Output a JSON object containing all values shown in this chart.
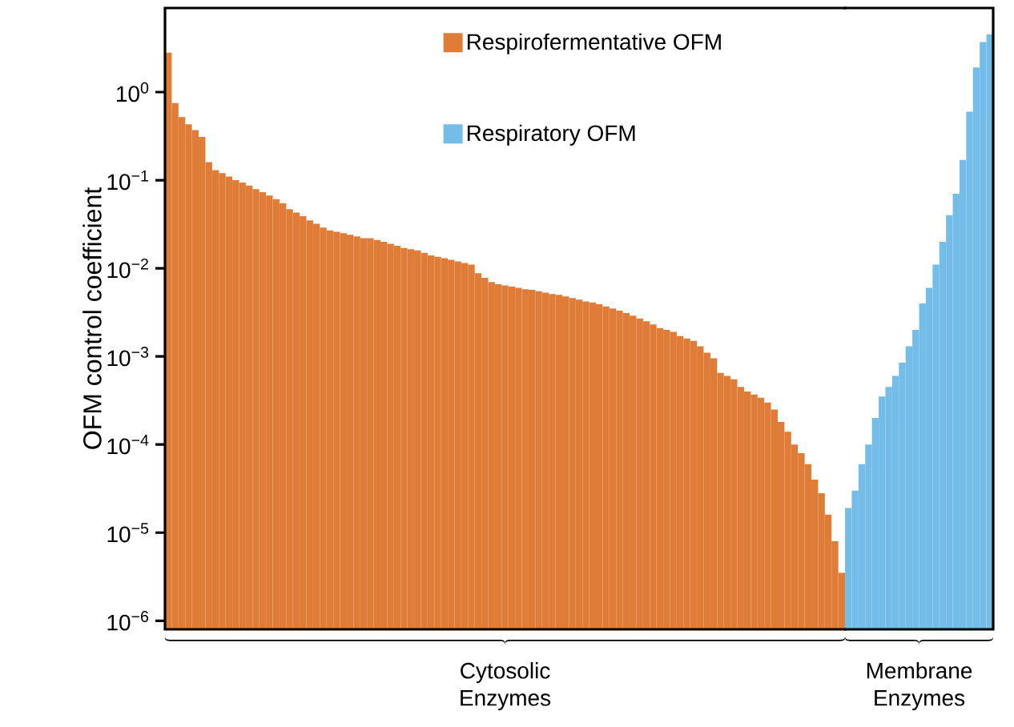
{
  "chart_data": [
    {
      "type": "bar",
      "ylabel": "OFM control coefficient",
      "log": "y",
      "legend": "top",
      "ylim": [
        8e-07,
        9
      ],
      "yticks": [
        {
          "value": 1e-06,
          "label": "10$^{−6}$"
        },
        {
          "value": 1e-05,
          "label": "10$^{−5}$"
        },
        {
          "value": 0.0001,
          "label": "10$^{−4}$"
        },
        {
          "value": 0.001,
          "label": "10$^{−3}$"
        },
        {
          "value": 0.01,
          "label": "10$^{−2}$"
        },
        {
          "value": 0.1,
          "label": "10$^{−1}$"
        },
        {
          "value": 1,
          "label": "10$^{0}$"
        }
      ],
      "annotations": [
        "Cytosolic Enzymes"
      ],
      "categories": [
        null,
        null,
        null,
        null,
        null,
        null,
        null,
        null,
        null,
        null,
        null,
        null,
        null,
        null,
        null,
        null,
        null,
        null,
        null,
        null,
        null,
        null,
        null,
        null,
        null,
        null,
        null,
        null,
        null,
        null,
        null,
        null,
        null,
        null,
        null,
        null,
        null,
        null,
        null,
        null,
        null,
        null,
        null,
        null,
        null,
        null,
        null,
        null,
        null,
        null,
        null,
        null,
        null,
        null,
        null,
        null,
        null,
        null,
        null,
        null,
        null,
        null,
        null,
        null,
        null,
        null,
        null,
        null,
        null,
        null,
        null,
        null,
        null,
        null,
        null,
        null,
        null,
        null,
        null,
        null,
        null,
        null,
        null,
        null,
        null,
        null,
        null,
        null,
        null,
        null,
        null,
        null,
        null,
        null,
        null,
        null,
        null,
        null,
        null,
        null,
        null
      ],
      "series": [
        {
          "name": "Respirofermentative OFM",
          "color": "#df7d38",
          "values": [
            2.8,
            0.75,
            0.52,
            0.43,
            0.37,
            0.31,
            0.16,
            0.13,
            0.12,
            0.11,
            0.1,
            0.094,
            0.087,
            0.079,
            0.073,
            0.067,
            0.061,
            0.055,
            0.047,
            0.043,
            0.039,
            0.035,
            0.032,
            0.029,
            0.027,
            0.026,
            0.025,
            0.024,
            0.023,
            0.022,
            0.022,
            0.021,
            0.02,
            0.019,
            0.018,
            0.017,
            0.0165,
            0.016,
            0.015,
            0.014,
            0.0135,
            0.013,
            0.0125,
            0.012,
            0.0115,
            0.011,
            0.0088,
            0.0078,
            0.007,
            0.0066,
            0.0064,
            0.0062,
            0.006,
            0.0058,
            0.0057,
            0.0055,
            0.0053,
            0.0051,
            0.005,
            0.0048,
            0.0046,
            0.0044,
            0.0042,
            0.0041,
            0.0039,
            0.0037,
            0.0035,
            0.0033,
            0.0031,
            0.0029,
            0.0027,
            0.0025,
            0.0023,
            0.0021,
            0.002,
            0.0019,
            0.0017,
            0.0016,
            0.0015,
            0.0013,
            0.0011,
            0.00095,
            0.00065,
            0.0006,
            0.00055,
            0.00045,
            0.0004,
            0.00037,
            0.00034,
            0.0003,
            0.00025,
            0.00018,
            0.00014,
            0.0001,
            8e-05,
            6e-05,
            4e-05,
            2.8e-05,
            1.6e-05,
            8e-06,
            3.5e-06
          ]
        }
      ]
    },
    {
      "type": "bar",
      "log": "y",
      "legend": "top",
      "ylim": [
        8e-07,
        9
      ],
      "annotations": [
        "Membrane Enzymes"
      ],
      "categories": [
        null,
        null,
        null,
        null,
        null,
        null,
        null,
        null,
        null,
        null,
        null,
        null,
        null,
        null,
        null,
        null,
        null,
        null,
        null,
        null,
        null,
        null
      ],
      "series": [
        {
          "name": "Respiratory OFM",
          "color": "#73bde8",
          "values": [
            1.9e-05,
            3e-05,
            6e-05,
            0.0001,
            0.0002,
            0.00035,
            0.00045,
            0.0006,
            0.00085,
            0.0013,
            0.002,
            0.004,
            0.006,
            0.011,
            0.02,
            0.04,
            0.07,
            0.17,
            0.6,
            1.9,
            3.7,
            4.5
          ]
        }
      ]
    }
  ]
}
